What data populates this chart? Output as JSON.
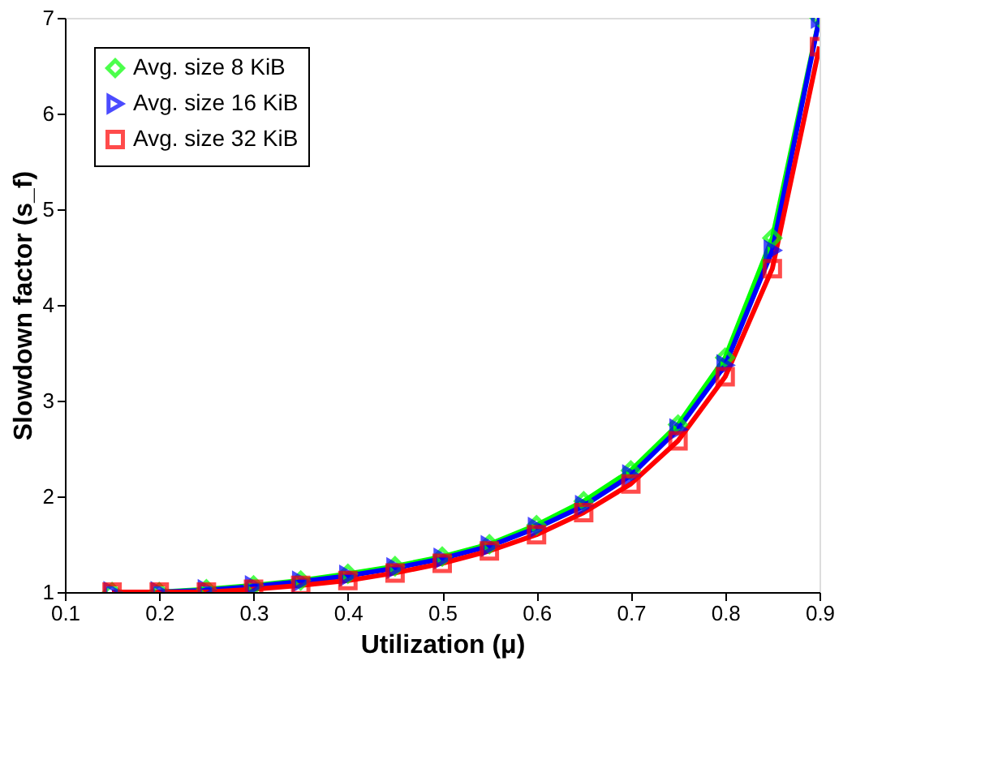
{
  "chart_data": {
    "type": "line",
    "xlabel": "Utilization (μ)",
    "ylabel": "Slowdown factor (s_f)",
    "x": [
      0.15,
      0.2,
      0.25,
      0.3,
      0.35,
      0.4,
      0.45,
      0.5,
      0.55,
      0.6,
      0.65,
      0.7,
      0.75,
      0.8,
      0.85,
      0.9
    ],
    "series": [
      {
        "name": "Avg. size 8 KiB",
        "color": "#00ff00",
        "marker": "diamond",
        "values": [
          1.0,
          1.0,
          1.03,
          1.07,
          1.12,
          1.19,
          1.27,
          1.37,
          1.5,
          1.7,
          1.95,
          2.27,
          2.75,
          3.45,
          4.7,
          7.0
        ]
      },
      {
        "name": "Avg. size 16 KiB",
        "color": "#0000ff",
        "marker": "triangle",
        "values": [
          1.0,
          1.0,
          1.02,
          1.06,
          1.11,
          1.17,
          1.25,
          1.35,
          1.48,
          1.67,
          1.9,
          2.22,
          2.7,
          3.37,
          4.57,
          7.0
        ]
      },
      {
        "name": "Avg. size 32 KiB",
        "color": "#ff0000",
        "marker": "square",
        "values": [
          1.0,
          1.0,
          1.0,
          1.03,
          1.07,
          1.12,
          1.2,
          1.3,
          1.43,
          1.6,
          1.83,
          2.13,
          2.58,
          3.25,
          4.38,
          6.7
        ]
      }
    ],
    "xlim": [
      0.1,
      0.9
    ],
    "xticks": [
      0.1,
      0.2,
      0.3,
      0.4,
      0.5,
      0.6,
      0.7,
      0.8,
      0.9
    ],
    "ylim": [
      1,
      7
    ],
    "yticks": [
      1,
      2,
      3,
      4,
      5,
      6,
      7
    ],
    "grid": false,
    "legend": "top left",
    "line_style": "solid"
  }
}
